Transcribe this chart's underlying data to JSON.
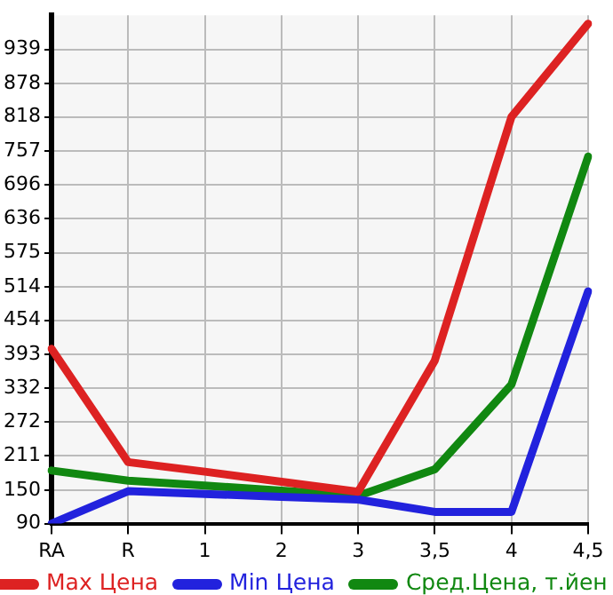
{
  "chart_data": {
    "type": "line",
    "categories": [
      "RA",
      "R",
      "1",
      "2",
      "3",
      "3,5",
      "4",
      "4,5"
    ],
    "series": [
      {
        "name": "Max Цена",
        "color": "#dd2222",
        "values": [
          403,
          200,
          183,
          165,
          147,
          382,
          818,
          985
        ]
      },
      {
        "name": "Min Цена",
        "color": "#2222dd",
        "values": [
          90,
          148,
          143,
          138,
          133,
          111,
          111,
          506
        ]
      },
      {
        "name": "Сред.Цена, т.йен",
        "color": "#118811",
        "values": [
          185,
          167,
          158,
          149,
          140,
          187,
          339,
          747
        ]
      }
    ],
    "ylim": [
      90,
      1000
    ],
    "yticks": [
      90,
      150,
      211,
      272,
      332,
      393,
      454,
      514,
      575,
      636,
      696,
      757,
      818,
      878,
      939
    ],
    "grid": true,
    "legend": "bottom",
    "marker": "none",
    "line_style": "solid"
  }
}
